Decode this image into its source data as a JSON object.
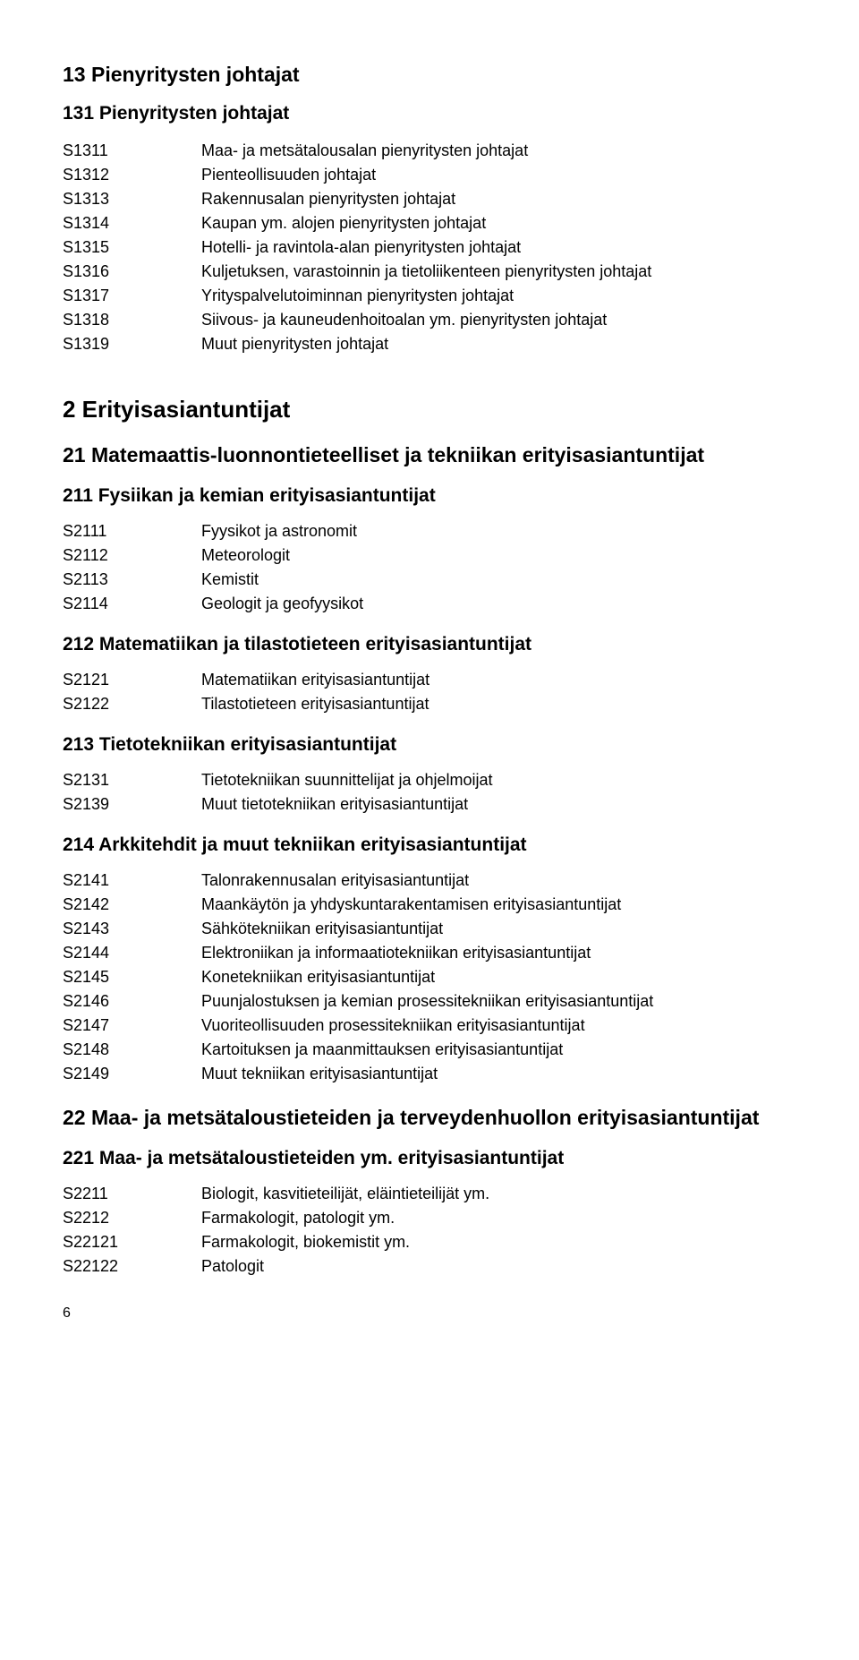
{
  "top": {
    "title": "13 Pienyritysten johtajat",
    "sub": "131 Pienyritysten johtajat",
    "rows": [
      {
        "code": "S1311",
        "label": "Maa- ja metsätalousalan pienyritysten johtajat"
      },
      {
        "code": "S1312",
        "label": "Pienteollisuuden johtajat"
      },
      {
        "code": "S1313",
        "label": "Rakennusalan pienyritysten johtajat"
      },
      {
        "code": "S1314",
        "label": "Kaupan ym. alojen pienyritysten johtajat"
      },
      {
        "code": "S1315",
        "label": "Hotelli- ja ravintola-alan pienyritysten johtajat"
      },
      {
        "code": "S1316",
        "label": "Kuljetuksen, varastoinnin ja tietoliikenteen pienyritysten johtajat"
      },
      {
        "code": "S1317",
        "label": "Yrityspalvelutoiminnan pienyritysten johtajat"
      },
      {
        "code": "S1318",
        "label": "Siivous- ja kauneudenhoitoalan ym. pienyritysten johtajat"
      },
      {
        "code": "S1319",
        "label": "Muut pienyritysten johtajat"
      }
    ]
  },
  "section2": {
    "title": "2 Erityisasiantuntijat",
    "cat21": {
      "title": "21 Matemaattis-luonnontieteelliset ja tekniikan erityisasiantuntijat",
      "g211": {
        "title": "211 Fysiikan ja kemian erityisasiantuntijat",
        "rows": [
          {
            "code": "S2111",
            "label": "Fyysikot ja astronomit"
          },
          {
            "code": "S2112",
            "label": "Meteorologit"
          },
          {
            "code": "S2113",
            "label": "Kemistit"
          },
          {
            "code": "S2114",
            "label": "Geologit ja geofyysikot"
          }
        ]
      },
      "g212": {
        "title": "212 Matematiikan ja tilastotieteen erityisasiantuntijat",
        "rows": [
          {
            "code": "S2121",
            "label": "Matematiikan erityisasiantuntijat"
          },
          {
            "code": "S2122",
            "label": "Tilastotieteen erityisasiantuntijat"
          }
        ]
      },
      "g213": {
        "title": "213 Tietotekniikan erityisasiantuntijat",
        "rows": [
          {
            "code": "S2131",
            "label": "Tietotekniikan suunnittelijat ja ohjelmoijat"
          },
          {
            "code": "S2139",
            "label": "Muut tietotekniikan erityisasiantuntijat"
          }
        ]
      },
      "g214": {
        "title": "214 Arkkitehdit ja muut tekniikan erityisasiantuntijat",
        "rows": [
          {
            "code": "S2141",
            "label": "Talonrakennusalan erityisasiantuntijat"
          },
          {
            "code": "S2142",
            "label": "Maankäytön ja yhdyskuntarakentamisen erityisasiantuntijat"
          },
          {
            "code": "S2143",
            "label": "Sähkötekniikan erityisasiantuntijat"
          },
          {
            "code": "S2144",
            "label": "Elektroniikan ja informaatiotekniikan erityisasiantuntijat"
          },
          {
            "code": "S2145",
            "label": "Konetekniikan erityisasiantuntijat"
          },
          {
            "code": "S2146",
            "label": "Puunjalostuksen ja kemian prosessitekniikan erityisasiantuntijat"
          },
          {
            "code": "S2147",
            "label": "Vuoriteollisuuden prosessitekniikan erityisasiantuntijat"
          },
          {
            "code": "S2148",
            "label": "Kartoituksen ja maanmittauksen erityisasiantuntijat"
          },
          {
            "code": "S2149",
            "label": "Muut tekniikan erityisasiantuntijat"
          }
        ]
      }
    },
    "cat22": {
      "title": "22 Maa- ja metsätaloustieteiden ja terveydenhuollon erityisasiantuntijat",
      "g221": {
        "title": "221 Maa- ja metsätaloustieteiden ym. erityisasiantuntijat",
        "rows": [
          {
            "code": "S2211",
            "label": "Biologit, kasvitieteilijät, eläintieteilijät ym."
          },
          {
            "code": "S2212",
            "label": "Farmakologit, patologit ym."
          },
          {
            "code": "S22121",
            "label": "Farmakologit, biokemistit ym."
          },
          {
            "code": "S22122",
            "label": "Patologit"
          }
        ]
      }
    }
  },
  "page": "6"
}
